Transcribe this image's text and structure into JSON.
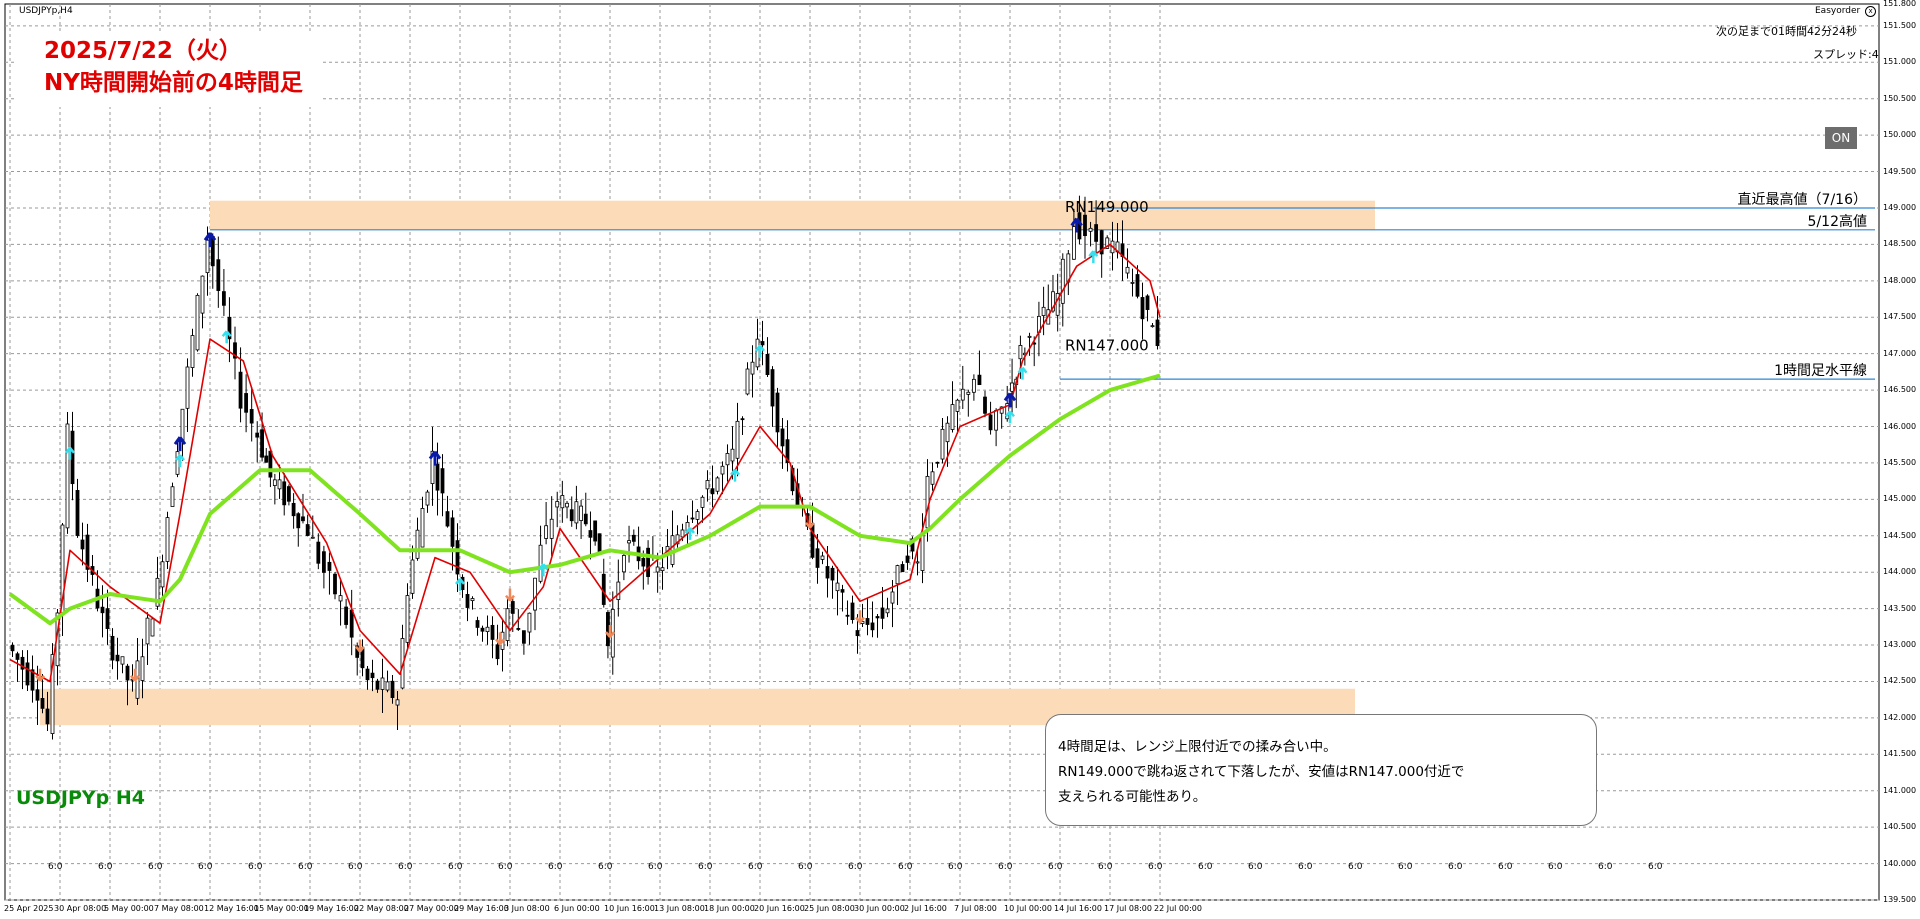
{
  "window": {
    "title": "USDJPYp,H4"
  },
  "annotation_title": {
    "line1": "2025/7/22（火）",
    "line2": "NY時間開始前の4時間足"
  },
  "symbol_label": "USDJPYp H4",
  "easyorder": {
    "label": "Easyorder",
    "close_symbol": "x",
    "countdown": "次の足まで01時間42分24秒",
    "spread": "スプレッド:4"
  },
  "on_button": {
    "label": "ON"
  },
  "note": {
    "line1": "4時間足は、レンジ上限付近での揉み合い中。",
    "line2": "RN149.000で跳ね返されて下落したが、安値はRN147.000付近で",
    "line3": "支えられる可能性あり。"
  },
  "colors": {
    "candle": "#000000",
    "ma_fast": "#e00000",
    "ma_slow": "#7fe31f",
    "zone": "#fcdcb8",
    "hline": "#2f86d4",
    "arrow_up_dark": "#0a1aa8",
    "arrow_up_light": "#34e0ee",
    "arrow_down": "#f08a5a",
    "title_red": "#e00000",
    "symbol_green": "#0a8a0a"
  },
  "chart_data": {
    "type": "candlestick",
    "symbol": "USDJPYp",
    "timeframe": "H4",
    "ylim": [
      139.5,
      151.8
    ],
    "grid": true,
    "y_ticks": [
      "151.800",
      "151.500",
      "151.000",
      "150.500",
      "150.000",
      "149.500",
      "149.000",
      "148.500",
      "148.000",
      "147.500",
      "147.000",
      "146.500",
      "146.000",
      "145.500",
      "145.000",
      "144.500",
      "144.000",
      "143.500",
      "143.000",
      "142.500",
      "142.000",
      "141.500",
      "141.000",
      "140.500",
      "140.000",
      "139.500"
    ],
    "x_ticks": [
      "25 Apr 2025",
      "30 Apr 08:00",
      "5 May 00:00",
      "7 May 08:00",
      "12 May 16:00",
      "15 May 00:00",
      "19 May 16:00",
      "22 May 08:00",
      "27 May 00:00",
      "29 May 16:00",
      "3 Jun 08:00",
      "6 Jun 00:00",
      "10 Jun 16:00",
      "13 Jun 08:00",
      "18 Jun 00:00",
      "20 Jun 16:00",
      "25 Jun 08:00",
      "30 Jun 00:00",
      "2 Jul 16:00",
      "7 Jul 08:00",
      "10 Jul 00:00",
      "14 Jul 16:00",
      "17 Jul 08:00",
      "22 Jul 00:00"
    ],
    "period_separator_labels": [
      "6:0",
      "6:0",
      "6:0",
      "6:0",
      "6:0",
      "6:0",
      "6:0",
      "6:0",
      "6:0",
      "6:0",
      "6:0",
      "6:0",
      "6:0",
      "6:0",
      "6:0",
      "6:0",
      "6:0",
      "6:0",
      "6:0",
      "6:0",
      "6:0",
      "6:0",
      "6:0",
      "6:0",
      "6:0",
      "6:0",
      "6:0",
      "6:0",
      "6:0",
      "6:0",
      "6:0",
      "6:0",
      "6:0"
    ],
    "price_path": [
      {
        "x": "25 Apr 2025",
        "y": 143.0
      },
      {
        "x": "28 Apr",
        "y": 142.4
      },
      {
        "x": "29 Apr",
        "y": 141.9
      },
      {
        "x": "30 Apr 08:00",
        "y": 143.5
      },
      {
        "x": "1 May",
        "y": 145.9
      },
      {
        "x": "2 May",
        "y": 144.6
      },
      {
        "x": "5 May 00:00",
        "y": 143.1
      },
      {
        "x": "6 May",
        "y": 142.4
      },
      {
        "x": "7 May 08:00",
        "y": 143.8
      },
      {
        "x": "9 May",
        "y": 145.8
      },
      {
        "x": "12 May 16:00",
        "y": 148.6
      },
      {
        "x": "13 May",
        "y": 147.5
      },
      {
        "x": "14 May",
        "y": 146.4
      },
      {
        "x": "15 May 00:00",
        "y": 145.9
      },
      {
        "x": "16 May",
        "y": 145.3
      },
      {
        "x": "19 May 16:00",
        "y": 144.6
      },
      {
        "x": "20 May",
        "y": 144.0
      },
      {
        "x": "21 May",
        "y": 143.6
      },
      {
        "x": "22 May 08:00",
        "y": 142.8
      },
      {
        "x": "23 May",
        "y": 142.5
      },
      {
        "x": "26 May",
        "y": 142.3
      },
      {
        "x": "27 May 00:00",
        "y": 143.8
      },
      {
        "x": "28 May",
        "y": 145.6
      },
      {
        "x": "29 May 16:00",
        "y": 144.1
      },
      {
        "x": "30 May",
        "y": 143.6
      },
      {
        "x": "2 Jun",
        "y": 142.9
      },
      {
        "x": "3 Jun 08:00",
        "y": 143.5
      },
      {
        "x": "4 Jun",
        "y": 143.1
      },
      {
        "x": "5 Jun",
        "y": 144.3
      },
      {
        "x": "6 Jun 00:00",
        "y": 145.0
      },
      {
        "x": "9 Jun",
        "y": 144.6
      },
      {
        "x": "10 Jun 16:00",
        "y": 143.0
      },
      {
        "x": "11 Jun",
        "y": 144.4
      },
      {
        "x": "13 Jun 08:00",
        "y": 144.0
      },
      {
        "x": "16 Jun",
        "y": 144.8
      },
      {
        "x": "18 Jun 00:00",
        "y": 145.1
      },
      {
        "x": "19 Jun",
        "y": 145.6
      },
      {
        "x": "20 Jun 16:00",
        "y": 147.3
      },
      {
        "x": "23 Jun",
        "y": 145.5
      },
      {
        "x": "24 Jun",
        "y": 145.0
      },
      {
        "x": "25 Jun 08:00",
        "y": 144.5
      },
      {
        "x": "26 Jun",
        "y": 144.2
      },
      {
        "x": "30 Jun 00:00",
        "y": 143.2
      },
      {
        "x": "1 Jul",
        "y": 143.4
      },
      {
        "x": "2 Jul 16:00",
        "y": 144.3
      },
      {
        "x": "3 Jul",
        "y": 144.1
      },
      {
        "x": "4 Jul",
        "y": 145.3
      },
      {
        "x": "7 Jul 08:00",
        "y": 146.3
      },
      {
        "x": "8 Jul",
        "y": 146.7
      },
      {
        "x": "9 Jul",
        "y": 145.9
      },
      {
        "x": "10 Jul 00:00",
        "y": 146.4
      },
      {
        "x": "11 Jul",
        "y": 147.0
      },
      {
        "x": "14 Jul 16:00",
        "y": 147.8
      },
      {
        "x": "15 Jul",
        "y": 148.8
      },
      {
        "x": "16 Jul",
        "y": 148.6
      },
      {
        "x": "17 Jul 08:00",
        "y": 148.5
      },
      {
        "x": "18 Jul",
        "y": 148.4
      },
      {
        "x": "21 Jul",
        "y": 147.5
      },
      {
        "x": "22 Jul 00:00",
        "y": 147.2
      }
    ],
    "moving_averages": [
      {
        "color": "red",
        "points": [
          {
            "x": "25 Apr 2025",
            "y": 142.8
          },
          {
            "x": "29 Apr",
            "y": 142.5
          },
          {
            "x": "1 May",
            "y": 144.3
          },
          {
            "x": "5 May 00:00",
            "y": 143.8
          },
          {
            "x": "7 May 08:00",
            "y": 143.3
          },
          {
            "x": "9 May",
            "y": 144.8
          },
          {
            "x": "12 May 16:00",
            "y": 147.2
          },
          {
            "x": "14 May",
            "y": 146.9
          },
          {
            "x": "16 May",
            "y": 145.6
          },
          {
            "x": "20 May",
            "y": 144.4
          },
          {
            "x": "22 May 08:00",
            "y": 143.2
          },
          {
            "x": "26 May",
            "y": 142.6
          },
          {
            "x": "28 May",
            "y": 144.2
          },
          {
            "x": "30 May",
            "y": 144.0
          },
          {
            "x": "3 Jun 08:00",
            "y": 143.2
          },
          {
            "x": "5 Jun",
            "y": 143.8
          },
          {
            "x": "6 Jun 00:00",
            "y": 144.6
          },
          {
            "x": "10 Jun 16:00",
            "y": 143.6
          },
          {
            "x": "13 Jun 08:00",
            "y": 144.2
          },
          {
            "x": "18 Jun 00:00",
            "y": 144.8
          },
          {
            "x": "20 Jun 16:00",
            "y": 146.0
          },
          {
            "x": "23 Jun",
            "y": 145.5
          },
          {
            "x": "25 Jun 08:00",
            "y": 144.6
          },
          {
            "x": "30 Jun 00:00",
            "y": 143.6
          },
          {
            "x": "2 Jul 16:00",
            "y": 143.9
          },
          {
            "x": "4 Jul",
            "y": 145.0
          },
          {
            "x": "7 Jul 08:00",
            "y": 146.0
          },
          {
            "x": "10 Jul 00:00",
            "y": 146.3
          },
          {
            "x": "11 Jul",
            "y": 146.9
          },
          {
            "x": "15 Jul",
            "y": 148.2
          },
          {
            "x": "17 Jul 08:00",
            "y": 148.5
          },
          {
            "x": "21 Jul",
            "y": 148.0
          },
          {
            "x": "22 Jul 00:00",
            "y": 147.5
          }
        ]
      },
      {
        "color": "green",
        "points": [
          {
            "x": "25 Apr 2025",
            "y": 143.7
          },
          {
            "x": "29 Apr",
            "y": 143.3
          },
          {
            "x": "1 May",
            "y": 143.5
          },
          {
            "x": "5 May 00:00",
            "y": 143.7
          },
          {
            "x": "7 May 08:00",
            "y": 143.6
          },
          {
            "x": "9 May",
            "y": 143.9
          },
          {
            "x": "12 May 16:00",
            "y": 144.8
          },
          {
            "x": "15 May 00:00",
            "y": 145.4
          },
          {
            "x": "19 May 16:00",
            "y": 145.4
          },
          {
            "x": "22 May 08:00",
            "y": 144.8
          },
          {
            "x": "26 May",
            "y": 144.3
          },
          {
            "x": "29 May 16:00",
            "y": 144.3
          },
          {
            "x": "3 Jun 08:00",
            "y": 144.0
          },
          {
            "x": "6 Jun 00:00",
            "y": 144.1
          },
          {
            "x": "10 Jun 16:00",
            "y": 144.3
          },
          {
            "x": "13 Jun 08:00",
            "y": 144.2
          },
          {
            "x": "18 Jun 00:00",
            "y": 144.5
          },
          {
            "x": "20 Jun 16:00",
            "y": 144.9
          },
          {
            "x": "25 Jun 08:00",
            "y": 144.9
          },
          {
            "x": "30 Jun 00:00",
            "y": 144.5
          },
          {
            "x": "2 Jul 16:00",
            "y": 144.4
          },
          {
            "x": "4 Jul",
            "y": 144.6
          },
          {
            "x": "7 Jul 08:00",
            "y": 145.0
          },
          {
            "x": "10 Jul 00:00",
            "y": 145.6
          },
          {
            "x": "14 Jul 16:00",
            "y": 146.1
          },
          {
            "x": "17 Jul 08:00",
            "y": 146.5
          },
          {
            "x": "22 Jul 00:00",
            "y": 146.7
          }
        ]
      }
    ],
    "zones": [
      {
        "from_x": "12 May 16:00",
        "to_x": "22 Jul 00:00",
        "y_top": 149.1,
        "y_bottom": 148.7
      },
      {
        "from_x": "28 Apr",
        "to_x": "22 Jul 00:00",
        "y_top": 142.4,
        "y_bottom": 141.9
      }
    ],
    "horizontal_lines": [
      {
        "label": "直近最高値（7/16）",
        "y": 149.0,
        "from_x": "16 Jul"
      },
      {
        "label": "5/12高値",
        "y": 148.7,
        "from_x": "12 May 16:00"
      },
      {
        "label": "1時間足水平線",
        "y": 146.65,
        "from_x": "14 Jul 16:00"
      }
    ],
    "annotations": [
      {
        "text": "RN149.000",
        "x": "20 Jun 16:00",
        "y": 149.0
      },
      {
        "text": "RN147.000",
        "x": "20 Jun 16:00",
        "y": 147.1
      }
    ],
    "signals": {
      "up_dark": [
        "12 May 16:00",
        "9 May",
        "28 May",
        "10 Jul 00:00",
        "15 Jul"
      ],
      "up_light": [
        "13 May",
        "1 May",
        "9 May",
        "29 May 16:00",
        "5 Jun",
        "19 Jun",
        "20 Jun 16:00",
        "16 Jun",
        "11 Jul",
        "10 Jul 00:00",
        "16 Jul"
      ],
      "down": [
        "28 Apr",
        "6 May",
        "22 May 08:00",
        "2 Jun",
        "3 Jun 08:00",
        "10 Jun 16:00",
        "25 Jun 08:00",
        "30 Jun 00:00"
      ]
    }
  }
}
